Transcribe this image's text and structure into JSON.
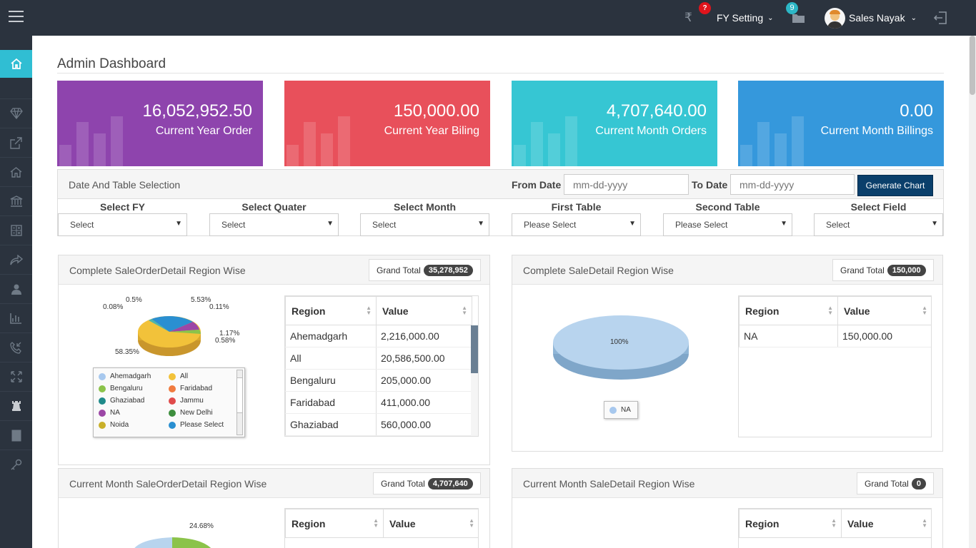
{
  "topbar": {
    "fy_badge": "?",
    "fy_setting": "FY Setting",
    "folder_badge": "9",
    "user_name": "Sales Nayak"
  },
  "page_title": "Admin Dashboard",
  "stats": [
    {
      "value": "16,052,952.50",
      "label": "Current Year Order",
      "color": "#8e44ad"
    },
    {
      "value": "150,000.00",
      "label": "Current Year Biling",
      "color": "#e8505b"
    },
    {
      "value": "4,707,640.00",
      "label": "Current Month Orders",
      "color": "#36c6d3"
    },
    {
      "value": "0.00",
      "label": "Current Month Billings",
      "color": "#3598dc"
    }
  ],
  "filter": {
    "title": "Date And Table Selection",
    "from_label": "From Date",
    "from_placeholder": "mm-dd-yyyy",
    "to_label": "To Date",
    "to_placeholder": "mm-dd-yyyy",
    "generate": "Generate Chart",
    "selects": [
      {
        "label": "Select FY",
        "value": "Select"
      },
      {
        "label": "Select Quater",
        "value": "Select"
      },
      {
        "label": "Select Month",
        "value": "Select"
      },
      {
        "label": "First Table",
        "value": "Please Select"
      },
      {
        "label": "Second Table",
        "value": "Please Select"
      },
      {
        "label": "Select Field",
        "value": "Select"
      }
    ]
  },
  "panels": {
    "p1": {
      "title": "Complete SaleOrderDetail Region Wise",
      "grand_label": "Grand Total",
      "grand_value": "35,278,952",
      "col_region": "Region",
      "col_value": "Value",
      "rows": [
        {
          "region": "Ahemadgarh",
          "value": "2,216,000.00"
        },
        {
          "region": "All",
          "value": "20,586,500.00"
        },
        {
          "region": "Bengaluru",
          "value": "205,000.00"
        },
        {
          "region": "Faridabad",
          "value": "411,000.00"
        },
        {
          "region": "Ghaziabad",
          "value": "560,000.00"
        }
      ],
      "pie_labels": [
        "0.5%",
        "5.53%",
        "0.08%",
        "0.11%",
        "1.17%",
        "0.58%",
        "58.35%"
      ],
      "legend": [
        "Ahemadgarh",
        "All",
        "Bengaluru",
        "Faridabad",
        "Ghaziabad",
        "Jammu",
        "NA",
        "New Delhi",
        "Noida",
        "Please Select"
      ]
    },
    "p2": {
      "title": "Complete SaleDetail Region Wise",
      "grand_label": "Grand Total",
      "grand_value": "150,000",
      "col_region": "Region",
      "col_value": "Value",
      "rows": [
        {
          "region": "NA",
          "value": "150,000.00"
        }
      ],
      "pie_label": "100%",
      "legend": [
        "NA"
      ]
    },
    "p3": {
      "title": "Current Month SaleOrderDetail Region Wise",
      "grand_label": "Grand Total",
      "grand_value": "4,707,640",
      "col_region": "Region",
      "col_value": "Value",
      "pie_label": "24.68%"
    },
    "p4": {
      "title": "Current Month SaleDetail Region Wise",
      "grand_label": "Grand Total",
      "grand_value": "0",
      "col_region": "Region",
      "col_value": "Value"
    }
  }
}
